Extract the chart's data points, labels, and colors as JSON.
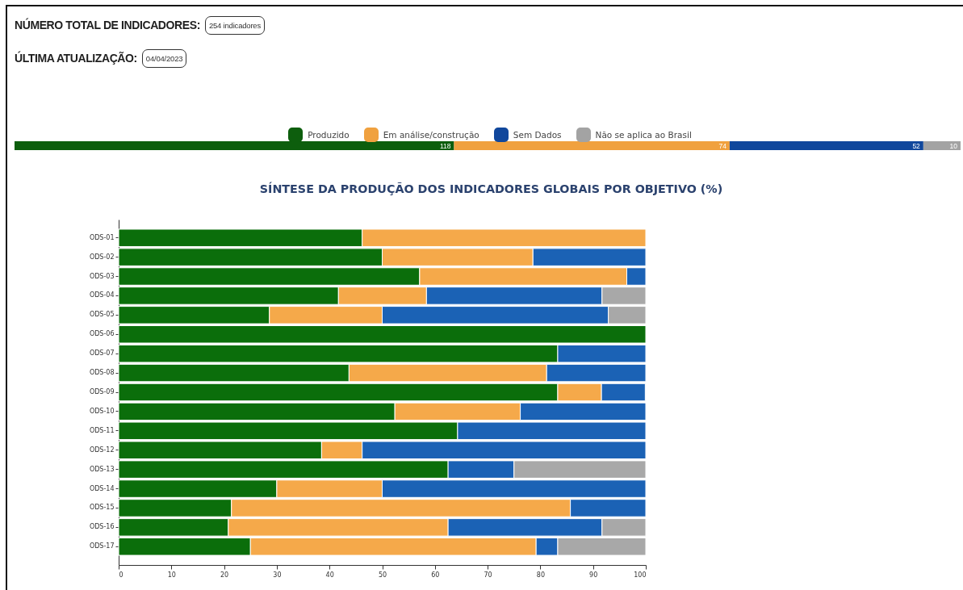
{
  "chart_data": [
    {
      "type": "bar",
      "orientation": "horizontal",
      "stacked": true,
      "categories": [
        null
      ],
      "series": [
        {
          "name": "Produzido",
          "color": "#0d5e0d",
          "values": [
            118
          ],
          "value_labels": [
            "118"
          ]
        },
        {
          "name": "Em análise/construção",
          "color": "#f0a13f",
          "values": [
            74
          ],
          "value_labels": [
            "74"
          ]
        },
        {
          "name": "Sem Dados",
          "color": "#10479c",
          "values": [
            52
          ],
          "value_labels": [
            "52"
          ]
        },
        {
          "name": "Não se aplica ao Brasil",
          "color": "#a3a3a3",
          "values": [
            10
          ],
          "value_labels": [
            "10"
          ]
        }
      ],
      "legend": "top",
      "annotations": [
        "NÚMERO TOTAL DE INDICADORES:",
        "254 indicadores",
        "ÚLTIMA ATUALIZAÇÃO:",
        "04/04/2023"
      ]
    },
    {
      "type": "bar",
      "title": "SÍNTESE DA PRODUÇÃO DOS INDICADORES GLOBAIS POR OBJETIVO (%)",
      "orientation": "horizontal",
      "stacked": true,
      "categories": [
        "ODS-01",
        "ODS-02",
        "ODS-03",
        "ODS-04",
        "ODS-05",
        "ODS-06",
        "ODS-07",
        "ODS-08",
        "ODS-09",
        "ODS-10",
        "ODS-11",
        "ODS-12",
        "ODS-13",
        "ODS-14",
        "ODS-15",
        "ODS-16",
        "ODS-17"
      ],
      "series": [
        {
          "color": "#0b6e0b",
          "values": [
            46.2,
            50,
            57.1,
            41.7,
            28.6,
            100,
            83.3,
            43.7,
            83.3,
            52.4,
            64.3,
            38.5,
            62.5,
            30,
            21.4,
            20.8,
            25
          ]
        },
        {
          "color": "#f5a94a",
          "values": [
            53.8,
            28.6,
            39.3,
            16.7,
            21.4,
            null,
            null,
            37.5,
            8.3,
            23.8,
            null,
            7.7,
            null,
            20,
            64.3,
            41.7,
            54.2
          ]
        },
        {
          "color": "#1b62b5",
          "values": [
            null,
            21.4,
            3.6,
            33.3,
            42.9,
            null,
            16.7,
            18.8,
            8.3,
            23.8,
            35.7,
            53.8,
            12.5,
            50,
            14.3,
            29.2,
            4.1
          ]
        },
        {
          "color": "#a8a8a8",
          "values": [
            null,
            null,
            null,
            8.3,
            7.1,
            null,
            null,
            null,
            null,
            null,
            null,
            null,
            25,
            null,
            null,
            8.3,
            16.7
          ]
        }
      ],
      "xlim": [
        0,
        100
      ],
      "xticks": [
        0,
        10,
        20,
        30,
        40,
        50,
        60,
        70,
        80,
        90,
        100
      ]
    }
  ]
}
